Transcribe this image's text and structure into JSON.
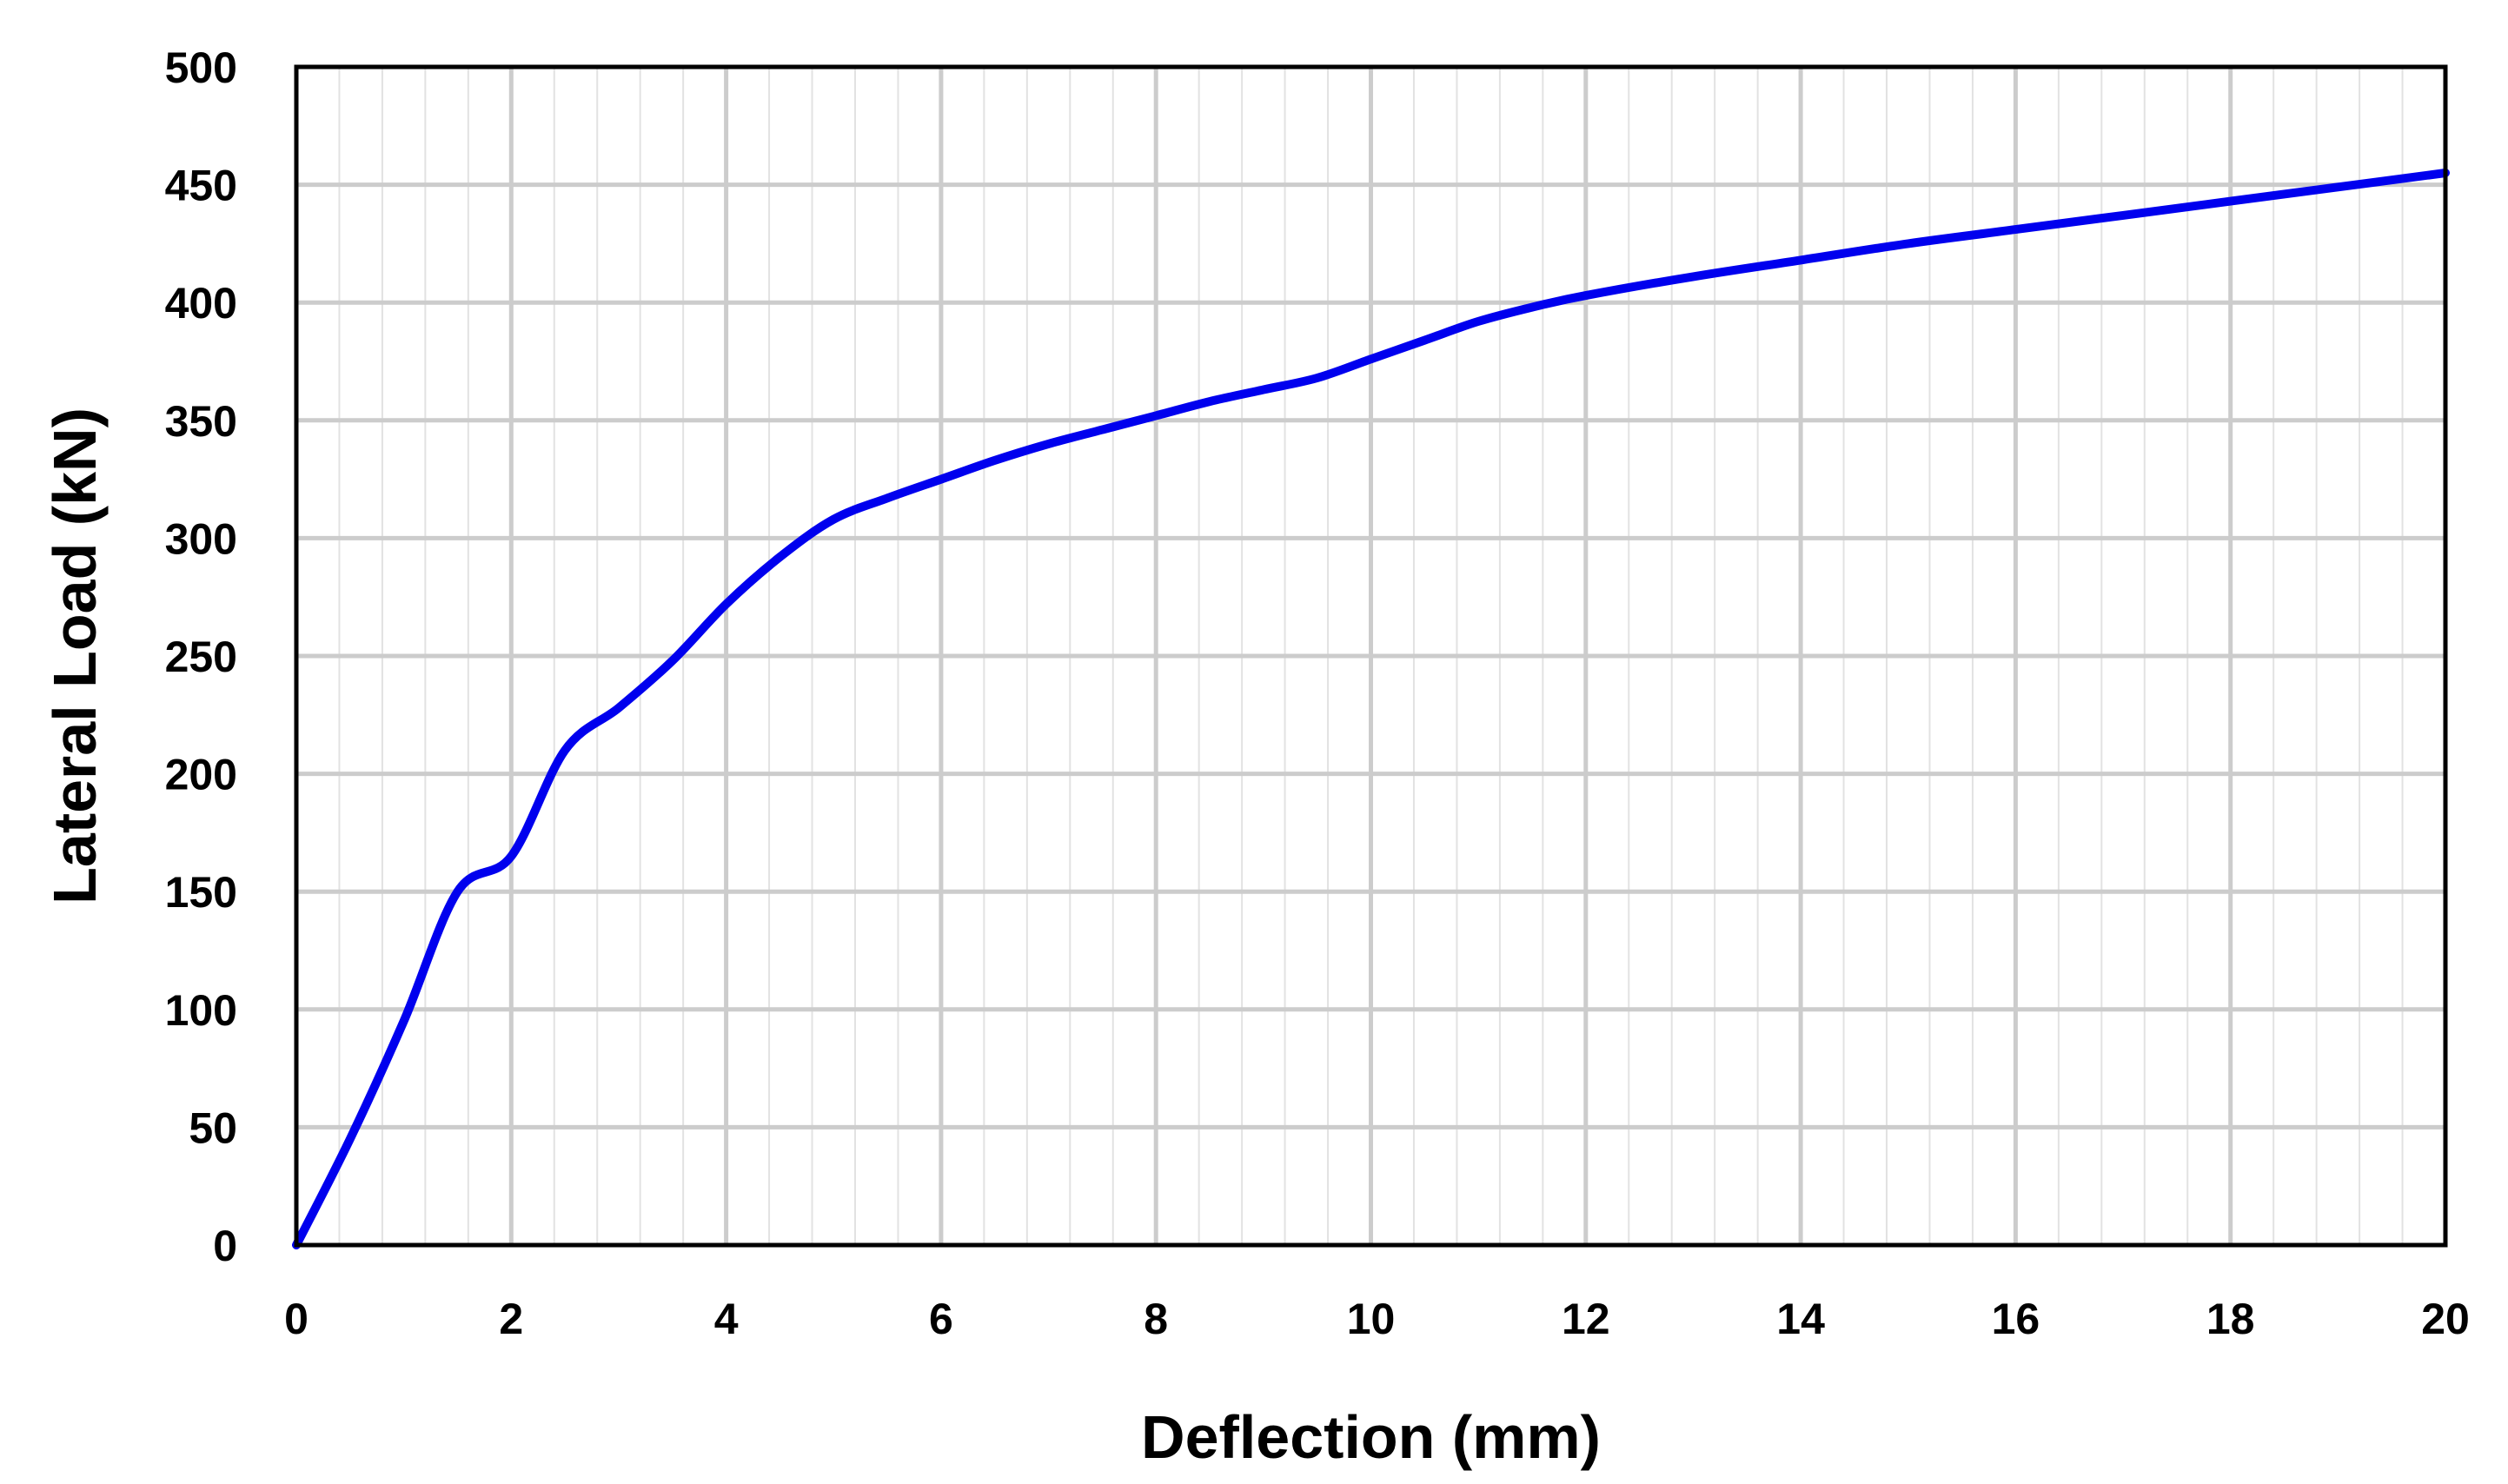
{
  "chart_data": {
    "type": "line",
    "title": "",
    "xlabel": "Deflection (mm)",
    "ylabel": "Lateral Load (kN)",
    "xlim": [
      0,
      20
    ],
    "ylim": [
      0,
      500
    ],
    "x_ticks": [
      "0",
      "2",
      "4",
      "6",
      "8",
      "10",
      "12",
      "14",
      "16",
      "18",
      "20"
    ],
    "y_ticks": [
      "0",
      "50",
      "100",
      "150",
      "200",
      "250",
      "300",
      "350",
      "400",
      "450",
      "500"
    ],
    "x_major_step": 2,
    "x_minor_step": 0.4,
    "y_major_step": 50,
    "y_minor_step": 50,
    "grid": true,
    "legend": "none",
    "colors": {
      "line": "#0000ee",
      "major_grid": "#cccccc",
      "minor_grid": "#e2e2e2",
      "frame": "#000000"
    },
    "series": [
      {
        "x": [
          0,
          0.5,
          1,
          1.5,
          2,
          2.5,
          3,
          3.5,
          4,
          4.5,
          5,
          5.5,
          6,
          6.5,
          7,
          7.5,
          8,
          8.5,
          9,
          9.5,
          10,
          10.5,
          11,
          11.5,
          12,
          13,
          14,
          15,
          16,
          17,
          18,
          19,
          20
        ],
        "y": [
          0,
          45,
          95,
          150,
          165,
          210,
          228,
          248,
          272,
          292,
          308,
          317,
          325,
          333,
          340,
          346,
          352,
          358,
          363,
          368,
          376,
          384,
          392,
          398,
          403,
          411,
          418,
          425,
          431,
          437,
          443,
          449,
          455
        ]
      }
    ]
  }
}
